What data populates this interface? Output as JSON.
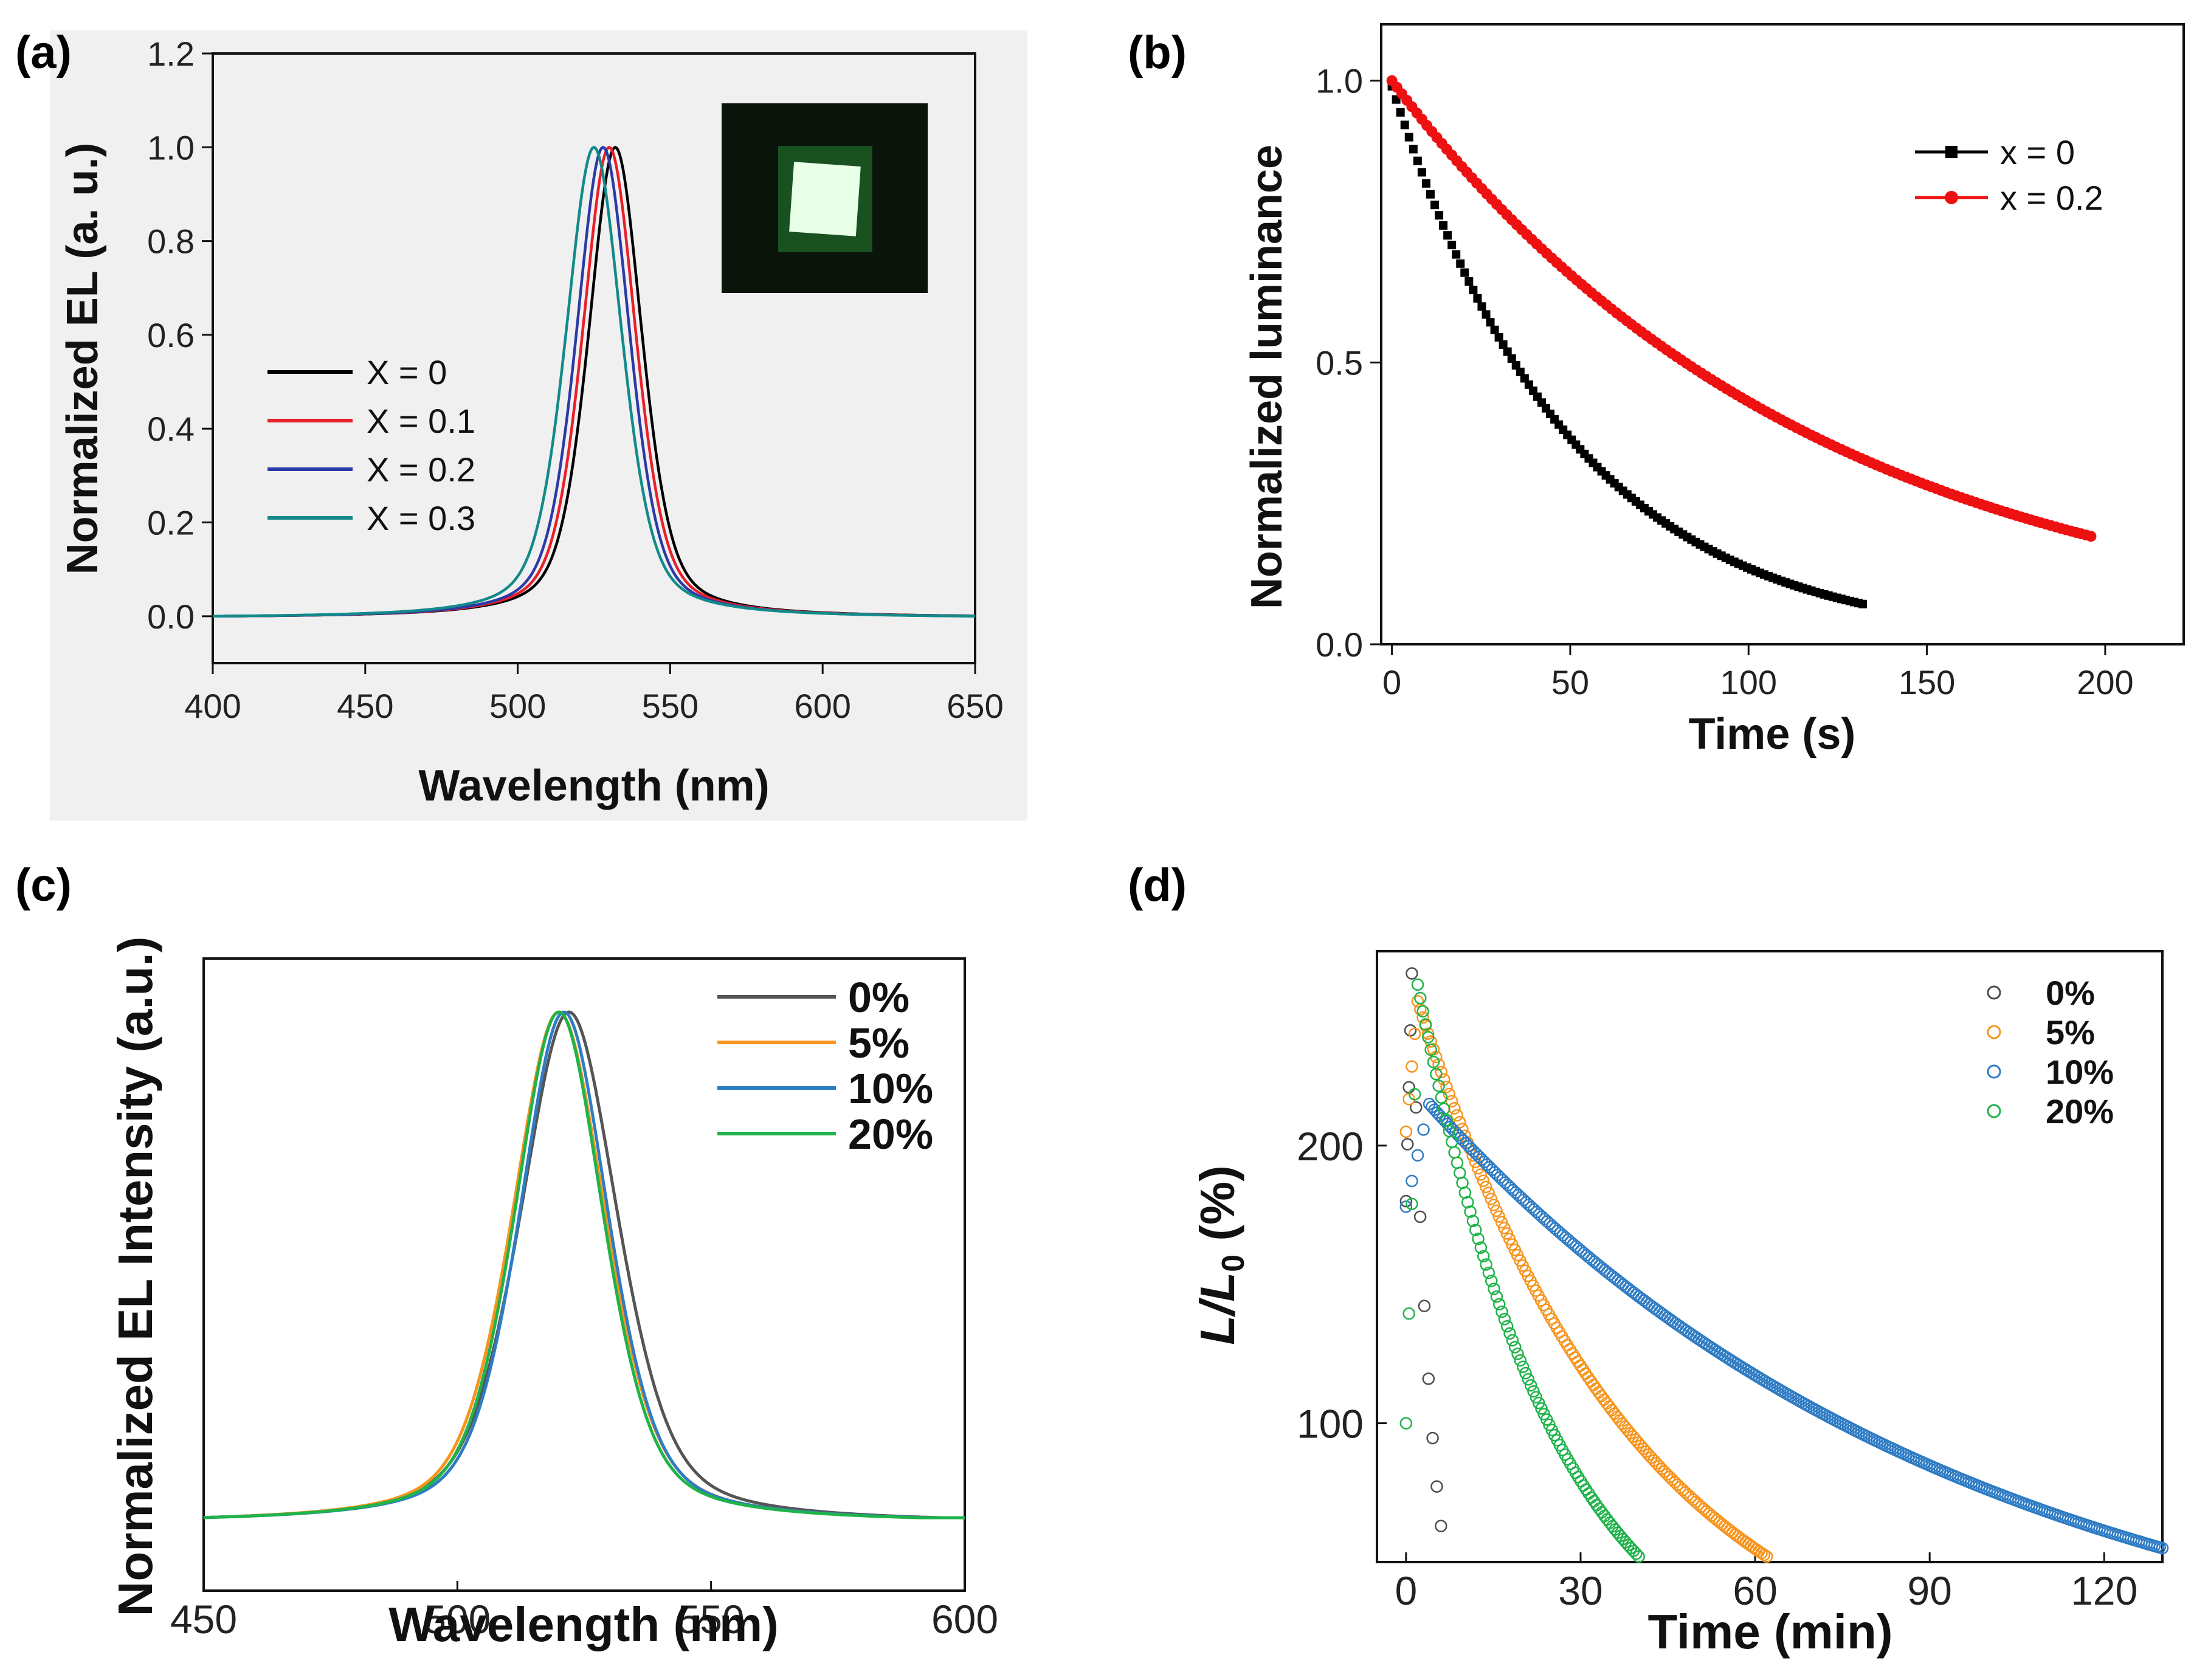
{
  "panels": {
    "a": {
      "label": "(a)"
    },
    "b": {
      "label": "(b)"
    },
    "c": {
      "label": "(c)"
    },
    "d": {
      "label": "(d)"
    }
  },
  "chart_data": [
    {
      "id": "a",
      "type": "line",
      "xlabel": "Wavelength (nm)",
      "ylabel": "Normalized EL (a. u.)",
      "xlim": [
        400,
        650
      ],
      "ylim": [
        -0.1,
        1.2
      ],
      "xticks": [
        "400",
        "450",
        "500",
        "550",
        "600",
        "650"
      ],
      "yticks": [
        "0.0",
        "0.2",
        "0.4",
        "0.6",
        "0.8",
        "1.0",
        "1.2"
      ],
      "legend_position": "center-left",
      "inset": "green-emission-photo",
      "series": [
        {
          "name": "X = 0",
          "color": "#000000",
          "peak": 532,
          "fwhm": 21
        },
        {
          "name": "X = 0.1",
          "color": "#e8202a",
          "peak": 530,
          "fwhm": 21
        },
        {
          "name": "X = 0.2",
          "color": "#2b3aa6",
          "peak": 528,
          "fwhm": 21
        },
        {
          "name": "X = 0.3",
          "color": "#138a8a",
          "peak": 525,
          "fwhm": 22
        }
      ]
    },
    {
      "id": "b",
      "type": "scatter",
      "xlabel": "Time (s)",
      "ylabel": "Normalized luminance",
      "xlim": [
        -3,
        222
      ],
      "ylim": [
        0.0,
        1.1
      ],
      "xticks": [
        "0",
        "50",
        "100",
        "150",
        "200"
      ],
      "yticks": [
        "0.0",
        "0.5",
        "1.0"
      ],
      "legend_position": "top-right",
      "series": [
        {
          "name": "x = 0",
          "color": "#000000",
          "x_end": 133,
          "y_start": 0.99,
          "y_end": 0.07
        },
        {
          "name": "x = 0.2",
          "color": "#ee1111",
          "x_end": 197,
          "y_start": 1.0,
          "y_end": 0.19
        }
      ]
    },
    {
      "id": "c",
      "type": "line",
      "xlabel": "Wavelength (nm)",
      "ylabel": "Normalized EL Intensity (a.u.)",
      "xlim": [
        450,
        600
      ],
      "xticks": [
        "450",
        "500",
        "550",
        "600"
      ],
      "legend_position": "top-right",
      "series": [
        {
          "name": "0%",
          "color": "#555555",
          "peak": 522,
          "fwhm": 23
        },
        {
          "name": "5%",
          "color": "#f7941d",
          "peak": 520,
          "fwhm": 22
        },
        {
          "name": "10%",
          "color": "#2f7cc4",
          "peak": 521,
          "fwhm": 21
        },
        {
          "name": "20%",
          "color": "#1fb34a",
          "peak": 520,
          "fwhm": 21
        }
      ]
    },
    {
      "id": "d",
      "type": "scatter",
      "xlabel": "Time (min)",
      "ylabel_main": "L/L",
      "ylabel_sub": "0",
      "ylabel_unit": " (%)",
      "xlim": [
        -5,
        130
      ],
      "ylim": [
        50,
        270
      ],
      "xticks": [
        "0",
        "30",
        "60",
        "90",
        "120"
      ],
      "yticks": [
        "100",
        "200"
      ],
      "legend_position": "top-right",
      "series": [
        {
          "name": "0%",
          "color": "#4d4d4d",
          "rise": [
            [
              0,
              180
            ],
            [
              1,
              262
            ]
          ],
          "decay_end": [
            6,
            63
          ]
        },
        {
          "name": "5%",
          "color": "#f7941d",
          "rise": [
            [
              0,
              205
            ],
            [
              2,
              252
            ]
          ],
          "decay_end": [
            62,
            52
          ]
        },
        {
          "name": "10%",
          "color": "#2f7cc4",
          "rise": [
            [
              0,
              178
            ],
            [
              4,
              215
            ]
          ],
          "decay_end": [
            130,
            55
          ]
        },
        {
          "name": "20%",
          "color": "#1fb34a",
          "rise": [
            [
              0,
              100
            ],
            [
              2,
              258
            ]
          ],
          "decay_end": [
            40,
            52
          ]
        }
      ]
    }
  ]
}
